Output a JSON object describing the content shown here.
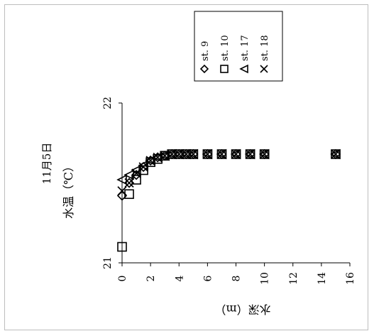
{
  "chart_data": {
    "type": "scatter",
    "title": "11月5日",
    "subtitle": "水温（℃）",
    "xlabel": "水深（m）",
    "ylabel": "水温（℃）",
    "xlim": [
      0,
      16
    ],
    "ylim": [
      21,
      22
    ],
    "x_ticks": [
      "0",
      "2",
      "4",
      "6",
      "8",
      "10",
      "12",
      "14",
      "16"
    ],
    "y_ticks": [
      "21",
      "22"
    ],
    "grid": false,
    "legend_placement": "top-right",
    "series": [
      {
        "name": "st. 9",
        "marker": "diamond",
        "x": [
          0,
          0.5,
          1,
          1.5,
          2,
          2.5,
          3,
          3.5,
          4,
          4.5,
          5,
          6,
          7,
          8,
          9,
          10,
          15
        ],
        "y": [
          21.42,
          21.5,
          21.55,
          21.6,
          21.64,
          21.66,
          21.67,
          21.68,
          21.68,
          21.68,
          21.68,
          21.68,
          21.68,
          21.68,
          21.68,
          21.68,
          21.68
        ]
      },
      {
        "name": "st. 10",
        "marker": "square",
        "x": [
          0,
          0.5,
          1,
          1.5,
          2,
          2.5,
          3,
          3.5,
          4,
          4.5,
          5,
          6,
          7,
          8,
          9,
          10,
          15
        ],
        "y": [
          21.1,
          21.43,
          21.52,
          21.58,
          21.63,
          21.65,
          21.67,
          21.68,
          21.68,
          21.68,
          21.68,
          21.68,
          21.68,
          21.68,
          21.68,
          21.68,
          21.68
        ]
      },
      {
        "name": "st. 17",
        "marker": "triangle",
        "x": [
          0,
          0.5,
          1,
          1.5,
          2,
          2.5,
          3,
          3.5,
          4,
          4.5,
          5,
          6,
          7,
          8,
          9,
          10,
          15
        ],
        "y": [
          21.52,
          21.55,
          21.58,
          21.61,
          21.64,
          21.66,
          21.67,
          21.68,
          21.68,
          21.68,
          21.68,
          21.68,
          21.68,
          21.68,
          21.68,
          21.68,
          21.68
        ]
      },
      {
        "name": "st. 18",
        "marker": "x",
        "x": [
          0,
          0.5,
          1,
          1.5,
          2,
          2.5,
          3,
          3.5,
          4,
          4.5,
          5,
          6,
          7,
          8,
          9,
          10,
          15
        ],
        "y": [
          21.45,
          21.5,
          21.56,
          21.6,
          21.64,
          21.66,
          21.67,
          21.68,
          21.68,
          21.68,
          21.68,
          21.68,
          21.68,
          21.68,
          21.68,
          21.68,
          21.68
        ]
      }
    ]
  }
}
